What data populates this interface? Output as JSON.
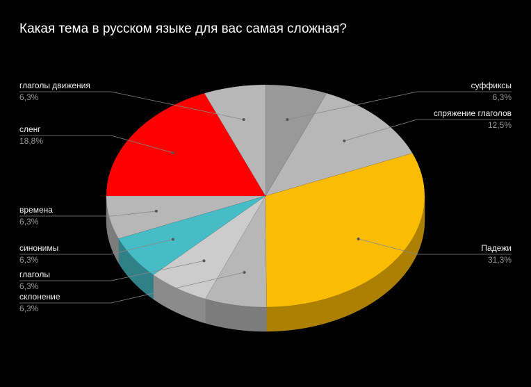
{
  "chart_data": {
    "type": "pie",
    "title": "Какая тема в русском языке для вас самая сложная?",
    "categories": [
      "суффиксы",
      "спряжение глаголов",
      "Падежи",
      "склонение",
      "глаголы",
      "синонимы",
      "времена",
      "сленг",
      "глаголы движения"
    ],
    "values": [
      6.3,
      12.5,
      31.3,
      6.3,
      6.3,
      6.3,
      6.3,
      18.8,
      6.3
    ],
    "value_labels": [
      "6,3%",
      "12,5%",
      "31,3%",
      "6,3%",
      "6,3%",
      "6,3%",
      "6,3%",
      "18,8%",
      "6,3%"
    ],
    "colors": [
      "#999999",
      "#b7b7b7",
      "#fbbc04",
      "#b7b7b7",
      "#cccccc",
      "#46bdc6",
      "#b7b7b7",
      "#ff0000",
      "#b7b7b7"
    ]
  }
}
